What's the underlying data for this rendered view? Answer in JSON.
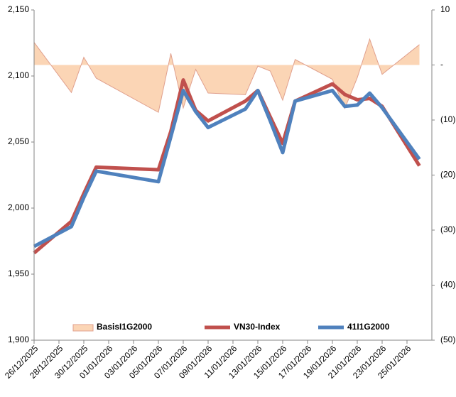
{
  "chart_data": {
    "type": "line",
    "x": [
      "26/12/2025",
      "29/12/2025",
      "30/12/2025",
      "31/12/2025",
      "05/01/2026",
      "06/01/2026",
      "07/01/2026",
      "08/01/2026",
      "09/01/2026",
      "12/01/2026",
      "13/01/2026",
      "14/01/2026",
      "15/01/2026",
      "16/01/2026",
      "19/01/2026",
      "20/01/2026",
      "21/01/2026",
      "22/01/2026",
      "23/01/2026",
      "26/01/2026"
    ],
    "xlim": [
      "26/12/2025",
      "27/01/2026"
    ],
    "xticks": [
      "26/12/2025",
      "28/12/2025",
      "30/12/2025",
      "01/01/2026",
      "03/01/2026",
      "05/01/2026",
      "07/01/2026",
      "09/01/2026",
      "11/01/2026",
      "13/01/2026",
      "15/01/2026",
      "17/01/2026",
      "19/01/2026",
      "21/01/2026",
      "23/01/2026",
      "25/01/2026"
    ],
    "ylim": [
      1900,
      2150
    ],
    "yticks": [
      {
        "value": 1900,
        "label": "1,900"
      },
      {
        "value": 1950,
        "label": "1,950"
      },
      {
        "value": 2000,
        "label": "2,000"
      },
      {
        "value": 2050,
        "label": "2,050"
      },
      {
        "value": 2100,
        "label": "2,100"
      },
      {
        "value": 2150,
        "label": "2,150"
      }
    ],
    "y2lim": [
      -50,
      10
    ],
    "y2ticks": [
      10,
      {
        "value": 0,
        "label": "-"
      },
      {
        "value": -10,
        "label": "(10)"
      },
      {
        "value": -20,
        "label": "(20)"
      },
      {
        "value": -30,
        "label": "(30)"
      },
      {
        "value": -40,
        "label": "(40)"
      },
      {
        "value": -50,
        "label": "(50)"
      }
    ],
    "series": [
      {
        "name": "BasisI1G2000",
        "kind": "area",
        "axis": "y2",
        "color": "#fbd5b5",
        "values": [
          4.1,
          -5.0,
          1.4,
          -2.4,
          -8.6,
          2.1,
          -7.8,
          -0.8,
          -5.1,
          -5.4,
          -0.2,
          -1.1,
          -6.4,
          1.0,
          -2.6,
          -7.9,
          -2.3,
          4.7,
          -1.7,
          3.7
        ]
      },
      {
        "name": "VN30-Index",
        "kind": "line",
        "color": "#c0504d",
        "values": [
          1966,
          1990,
          2011,
          2031,
          2029,
          2058,
          2097,
          2074,
          2066,
          2081,
          2089,
          2069,
          2049,
          2081,
          2094,
          2086,
          2082,
          2083,
          2077,
          2032
        ]
      },
      {
        "name": "41I1G2000",
        "kind": "line",
        "color": "#4f81bd",
        "values": [
          1971,
          1986,
          2008,
          2028,
          2020,
          2054,
          2089,
          2073,
          2061,
          2075,
          2089,
          2066,
          2042,
          2081,
          2089,
          2077,
          2078,
          2087,
          2076,
          2037
        ]
      }
    ]
  }
}
